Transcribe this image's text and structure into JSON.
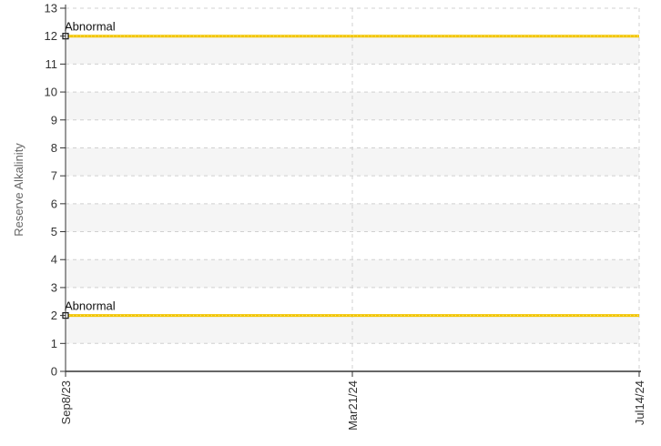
{
  "chart_data": {
    "type": "line",
    "ylabel": "Reserve Alkalinity",
    "ylim": [
      0,
      13
    ],
    "y_ticks": [
      "0",
      "1",
      "2",
      "3",
      "4",
      "5",
      "6",
      "7",
      "8",
      "9",
      "10",
      "11",
      "12",
      "13"
    ],
    "x_ticks": [
      "Sep8/23",
      "Mar21/24",
      "Jul14/24"
    ],
    "grid": true,
    "series": [
      {
        "x": [
          "Sep8/23",
          "Jul14/24"
        ],
        "y": [
          12,
          12
        ],
        "color": "#f2c500",
        "label": "Abnormal"
      },
      {
        "x": [
          "Sep8/23",
          "Jul14/24"
        ],
        "y": [
          2,
          2
        ],
        "color": "#f2c500",
        "label": "Abnormal"
      }
    ],
    "band_colors": [
      "#f5f5f5",
      "#ffffff"
    ]
  }
}
